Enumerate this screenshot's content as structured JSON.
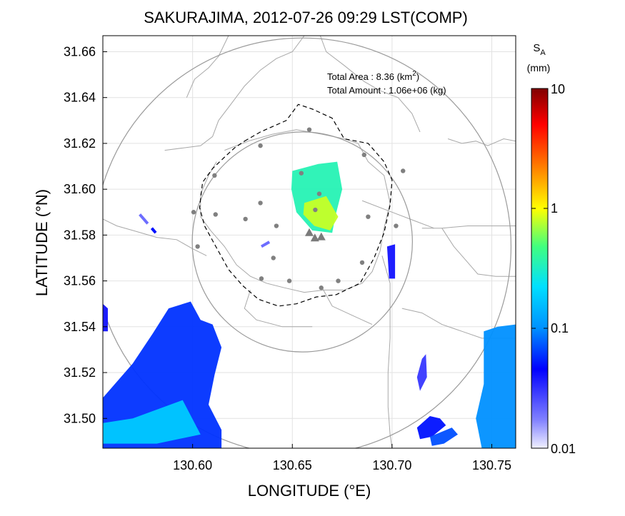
{
  "chart_data": {
    "type": "heatmap",
    "title": "SAKURAJIMA, 2012-07-26 09:29 LST(COMP)",
    "xlabel": "LONGITUDE (°E)",
    "ylabel": "LATITUDE (°N)",
    "xlim": [
      130.555,
      130.762
    ],
    "ylim": [
      31.487,
      31.667
    ],
    "x_ticks": [
      "130.60",
      "130.65",
      "130.70",
      "130.75"
    ],
    "y_ticks": [
      "31.66",
      "31.64",
      "31.62",
      "31.60",
      "31.58",
      "31.56",
      "31.54",
      "31.52",
      "31.50"
    ],
    "grid": true,
    "colorbar": {
      "label_main": "S",
      "label_sub": "A",
      "unit": "(mm)",
      "scale": "log",
      "ticks": [
        "10",
        "1",
        "0.1",
        "0.01"
      ]
    },
    "annotations": {
      "area_label": "Total Area   : 8.36 (km",
      "area_sup": "2",
      "area_close": ")",
      "amount": "Total Amount : 1.06e+06 (kg)"
    },
    "vent": [
      130.6613,
      31.5797
    ],
    "vent_markers": [
      [
        130.6585,
        31.5808
      ],
      [
        130.6613,
        31.5785
      ],
      [
        130.6645,
        31.579
      ]
    ],
    "range_circles": [
      {
        "center": [
          130.655,
          31.577
        ],
        "radius_deg_lat": 0.048
      },
      {
        "center": [
          130.655,
          31.575
        ],
        "radius_deg_lat": 0.091
      }
    ],
    "stations": [
      [
        130.6585,
        31.626
      ],
      [
        130.634,
        31.619
      ],
      [
        130.686,
        31.615
      ],
      [
        130.611,
        31.606
      ],
      [
        130.6545,
        31.607
      ],
      [
        130.7055,
        31.608
      ],
      [
        130.6635,
        31.598
      ],
      [
        130.6005,
        31.59
      ],
      [
        130.6615,
        31.591
      ],
      [
        130.688,
        31.588
      ],
      [
        130.6115,
        31.589
      ],
      [
        130.6265,
        31.587
      ],
      [
        130.634,
        31.594
      ],
      [
        130.642,
        31.584
      ],
      [
        130.702,
        31.584
      ],
      [
        130.6025,
        31.575
      ],
      [
        130.6405,
        31.57
      ],
      [
        130.685,
        31.568
      ],
      [
        130.6345,
        31.561
      ],
      [
        130.6485,
        31.56
      ],
      [
        130.673,
        31.56
      ],
      [
        130.6645,
        31.557
      ]
    ],
    "ash_patches": [
      {
        "name": "main-plume",
        "level": 0.35,
        "points": [
          [
            130.65,
            31.608
          ],
          [
            130.663,
            31.611
          ],
          [
            130.6725,
            31.612
          ],
          [
            130.675,
            31.6
          ],
          [
            130.6715,
            31.588
          ],
          [
            130.67,
            31.581
          ],
          [
            130.66,
            31.582
          ],
          [
            130.652,
            31.59
          ],
          [
            130.6495,
            31.6
          ]
        ]
      },
      {
        "name": "plume-core",
        "level": 0.8,
        "points": [
          [
            130.656,
            31.594
          ],
          [
            130.667,
            31.597
          ],
          [
            130.673,
            31.588
          ],
          [
            130.669,
            31.582
          ],
          [
            130.661,
            31.584
          ],
          [
            130.6555,
            31.589
          ]
        ]
      },
      {
        "name": "east-streak",
        "level": 0.04,
        "points": [
          [
            130.6975,
            31.575
          ],
          [
            130.7015,
            31.576
          ],
          [
            130.7015,
            31.561
          ],
          [
            130.6985,
            31.561
          ]
        ]
      },
      {
        "name": "southwest-field",
        "level": 0.06,
        "points": [
          [
            130.555,
            31.509
          ],
          [
            130.57,
            31.524
          ],
          [
            130.58,
            31.537
          ],
          [
            130.588,
            31.548
          ],
          [
            130.599,
            31.551
          ],
          [
            130.604,
            31.543
          ],
          [
            130.61,
            31.541
          ],
          [
            130.6145,
            31.531
          ],
          [
            130.611,
            31.519
          ],
          [
            130.608,
            31.506
          ],
          [
            130.6145,
            31.495
          ],
          [
            130.6145,
            31.487
          ],
          [
            130.555,
            31.487
          ]
        ]
      },
      {
        "name": "southwest-bright",
        "level": 0.18,
        "points": [
          [
            130.555,
            31.489
          ],
          [
            130.582,
            31.489
          ],
          [
            130.604,
            31.493
          ],
          [
            130.595,
            31.508
          ],
          [
            130.57,
            31.5
          ],
          [
            130.555,
            31.498
          ]
        ]
      },
      {
        "name": "southeast-arc-1",
        "level": 0.05,
        "points": [
          [
            130.7125,
            31.496
          ],
          [
            130.719,
            31.501
          ],
          [
            130.724,
            31.5
          ],
          [
            130.727,
            31.497
          ],
          [
            130.72,
            31.492
          ],
          [
            130.714,
            31.491
          ]
        ]
      },
      {
        "name": "southeast-arc-2",
        "level": 0.07,
        "points": [
          [
            130.719,
            31.492
          ],
          [
            130.73,
            31.496
          ],
          [
            130.733,
            31.493
          ],
          [
            130.726,
            31.489
          ],
          [
            130.72,
            31.488
          ]
        ]
      },
      {
        "name": "east-cluster",
        "level": 0.1,
        "points": [
          [
            130.746,
            31.538
          ],
          [
            130.753,
            31.54
          ],
          [
            130.762,
            31.541
          ],
          [
            130.762,
            31.487
          ],
          [
            130.745,
            31.487
          ],
          [
            130.742,
            31.5
          ],
          [
            130.746,
            31.515
          ]
        ]
      },
      {
        "name": "east-lobe",
        "level": 0.03,
        "points": [
          [
            130.715,
            31.526
          ],
          [
            130.717,
            31.528
          ],
          [
            130.7175,
            31.518
          ],
          [
            130.714,
            31.512
          ],
          [
            130.7125,
            31.518
          ]
        ]
      },
      {
        "name": "west-edge",
        "level": 0.04,
        "points": [
          [
            130.555,
            31.55
          ],
          [
            130.5575,
            31.548
          ],
          [
            130.5575,
            31.538
          ],
          [
            130.555,
            31.538
          ]
        ]
      }
    ],
    "ash_streaks": [
      {
        "level": 0.02,
        "from": [
          130.5735,
          31.589
        ],
        "to": [
          130.5775,
          31.585
        ]
      },
      {
        "level": 0.05,
        "from": [
          130.5795,
          31.583
        ],
        "to": [
          130.5815,
          31.581
        ]
      },
      {
        "level": 0.02,
        "from": [
          130.6345,
          31.575
        ],
        "to": [
          130.6385,
          31.577
        ]
      }
    ],
    "dashed_boundary": [
      [
        130.626,
        31.621
      ],
      [
        130.634,
        31.625
      ],
      [
        130.647,
        31.63
      ],
      [
        130.653,
        31.637
      ],
      [
        130.66,
        31.635
      ],
      [
        130.67,
        31.631
      ],
      [
        130.676,
        31.622
      ],
      [
        130.688,
        31.62
      ],
      [
        130.696,
        31.612
      ],
      [
        130.7,
        31.604
      ],
      [
        130.699,
        31.593
      ],
      [
        130.696,
        31.581
      ],
      [
        130.691,
        31.57
      ],
      [
        130.684,
        31.559
      ],
      [
        130.672,
        31.554
      ],
      [
        130.662,
        31.553
      ],
      [
        130.652,
        31.55
      ],
      [
        130.643,
        31.549
      ],
      [
        130.633,
        31.552
      ],
      [
        130.625,
        31.558
      ],
      [
        130.618,
        31.565
      ],
      [
        130.611,
        31.576
      ],
      [
        130.606,
        31.584
      ],
      [
        130.6035,
        31.592
      ],
      [
        130.605,
        31.603
      ],
      [
        130.61,
        31.609
      ],
      [
        130.616,
        31.614
      ],
      [
        130.621,
        31.618
      ]
    ],
    "coastlines": [
      [
        [
          130.616,
          31.617
        ],
        [
          130.628,
          31.621
        ],
        [
          130.64,
          31.624
        ],
        [
          130.652,
          31.626
        ],
        [
          130.665,
          31.624
        ],
        [
          130.676,
          31.622
        ],
        [
          130.683,
          31.62
        ],
        [
          130.688,
          31.612
        ],
        [
          130.696,
          31.606
        ],
        [
          130.699,
          31.594
        ],
        [
          130.696,
          31.583
        ],
        [
          130.694,
          31.573
        ],
        [
          130.69,
          31.564
        ],
        [
          130.685,
          31.559
        ],
        [
          130.676,
          31.556
        ],
        [
          130.666,
          31.556
        ],
        [
          130.656,
          31.555
        ],
        [
          130.646,
          31.557
        ],
        [
          130.637,
          31.559
        ],
        [
          130.629,
          31.562
        ],
        [
          130.622,
          31.567
        ],
        [
          130.616,
          31.575
        ],
        [
          130.609,
          31.582
        ],
        [
          130.604,
          31.588
        ],
        [
          130.604,
          31.598
        ],
        [
          130.608,
          31.606
        ],
        [
          130.612,
          31.612
        ]
      ],
      [
        [
          130.685,
          31.595
        ],
        [
          130.7,
          31.59
        ],
        [
          130.712,
          31.586
        ],
        [
          130.721,
          31.583
        ]
      ],
      [
        [
          130.586,
          31.617
        ],
        [
          130.604,
          31.619
        ],
        [
          130.61,
          31.623
        ],
        [
          130.613,
          31.63
        ],
        [
          130.62,
          31.638
        ],
        [
          130.626,
          31.645
        ],
        [
          130.634,
          31.652
        ],
        [
          130.642,
          31.657
        ],
        [
          130.65,
          31.66
        ],
        [
          130.656,
          31.667
        ]
      ],
      [
        [
          130.664,
          31.667
        ],
        [
          130.667,
          31.66
        ],
        [
          130.676,
          31.654
        ],
        [
          130.686,
          31.647
        ],
        [
          130.694,
          31.643
        ],
        [
          130.703,
          31.64
        ],
        [
          130.71,
          31.633
        ],
        [
          130.714,
          31.625
        ]
      ],
      [
        [
          130.695,
          31.571
        ],
        [
          130.699,
          31.559
        ],
        [
          130.699,
          31.548
        ],
        [
          130.699,
          31.535
        ],
        [
          130.698,
          31.52
        ],
        [
          130.698,
          31.505
        ],
        [
          130.699,
          31.493
        ],
        [
          130.7,
          31.487
        ]
      ],
      [
        [
          130.629,
          31.556
        ],
        [
          130.626,
          31.548
        ],
        [
          130.632,
          31.543
        ],
        [
          130.645,
          31.54
        ],
        [
          130.66,
          31.54
        ]
      ],
      [
        [
          130.665,
          31.557
        ],
        [
          130.67,
          31.549
        ],
        [
          130.68,
          31.545
        ],
        [
          130.69,
          31.541
        ]
      ],
      [
        [
          130.555,
          31.587
        ],
        [
          130.562,
          31.584
        ],
        [
          130.57,
          31.582
        ],
        [
          130.582,
          31.579
        ],
        [
          130.592,
          31.578
        ],
        [
          130.6,
          31.574
        ],
        [
          130.607,
          31.571
        ]
      ],
      [
        [
          130.597,
          31.64
        ],
        [
          130.601,
          31.648
        ],
        [
          130.608,
          31.653
        ],
        [
          130.613,
          31.658
        ],
        [
          130.618,
          31.667
        ]
      ],
      [
        [
          130.728,
          31.622
        ],
        [
          130.735,
          31.62
        ],
        [
          130.742,
          31.621
        ],
        [
          130.748,
          31.619
        ],
        [
          130.756,
          31.622
        ],
        [
          130.762,
          31.621
        ]
      ],
      [
        [
          130.715,
          31.583
        ],
        [
          130.725,
          31.583
        ],
        [
          130.738,
          31.584
        ],
        [
          130.75,
          31.584
        ],
        [
          130.762,
          31.584
        ]
      ],
      [
        [
          130.725,
          31.583
        ],
        [
          130.731,
          31.575
        ],
        [
          130.737,
          31.569
        ],
        [
          130.743,
          31.563
        ],
        [
          130.752,
          31.562
        ],
        [
          130.762,
          31.562
        ]
      ],
      [
        [
          130.705,
          31.548
        ],
        [
          130.715,
          31.546
        ],
        [
          130.725,
          31.541
        ],
        [
          130.735,
          31.538
        ],
        [
          130.745,
          31.535
        ],
        [
          130.762,
          31.535
        ]
      ]
    ]
  }
}
